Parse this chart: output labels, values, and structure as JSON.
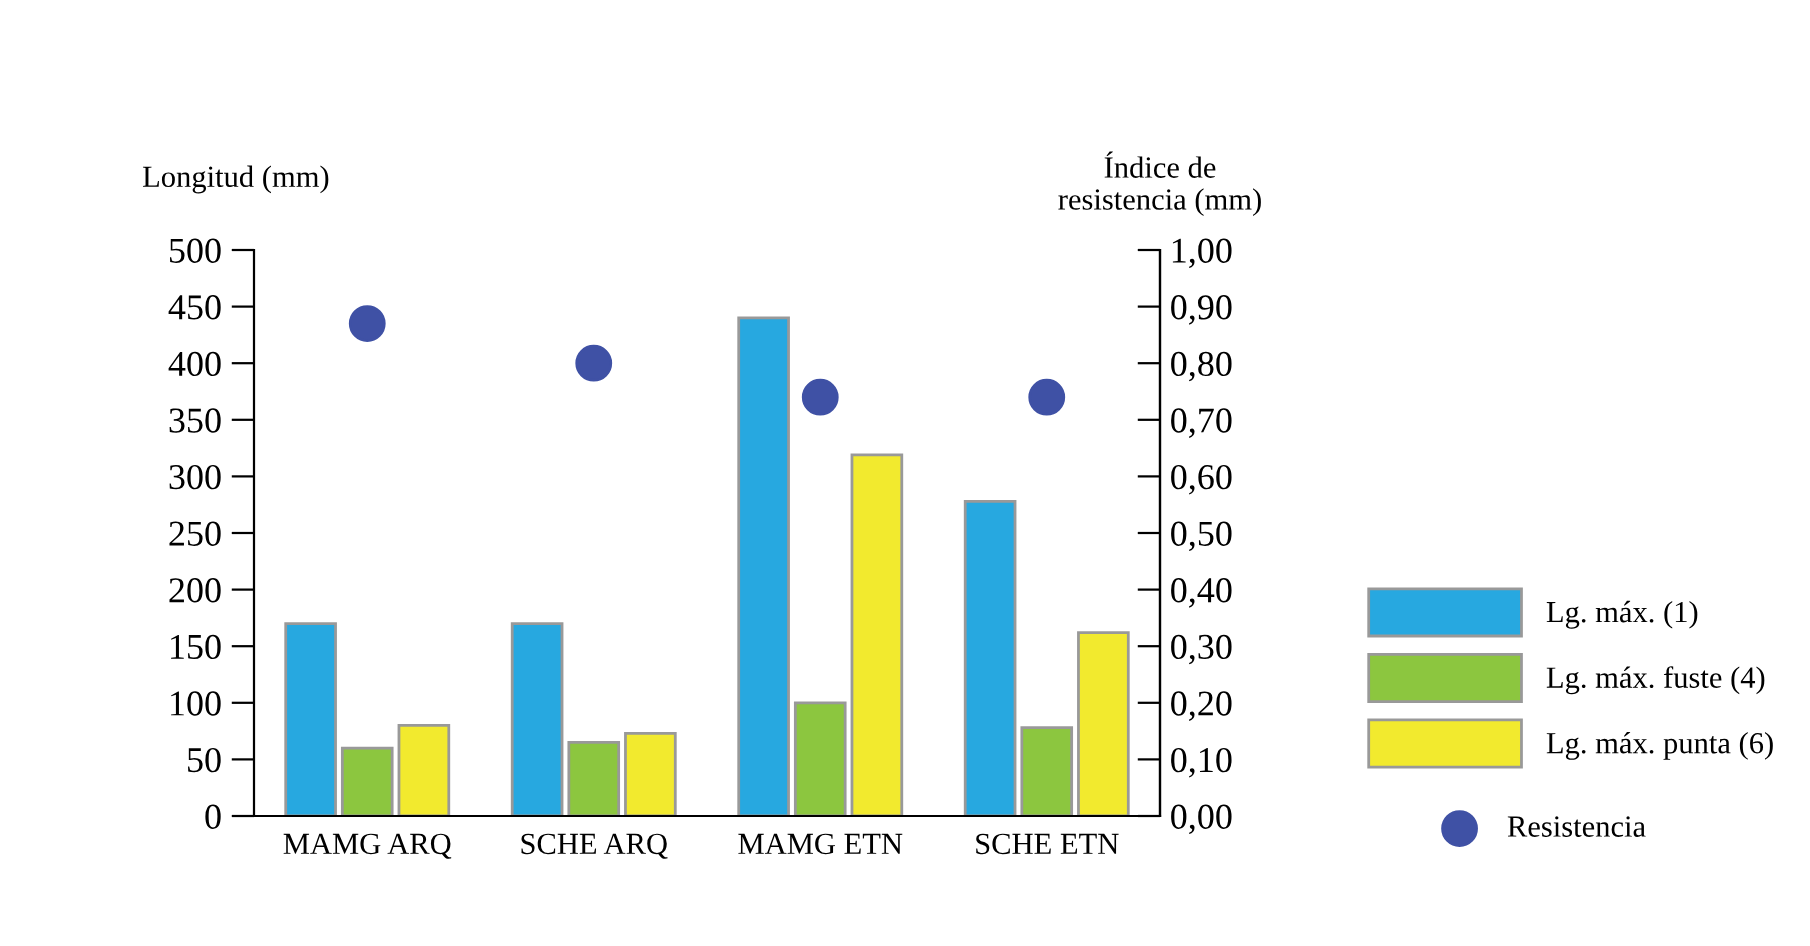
{
  "chart_data": {
    "type": "bar",
    "categories": [
      "MAMG ARQ",
      "SCHE ARQ",
      "MAMG ETN",
      "SCHE ETN"
    ],
    "ylabel": "Longitud (mm)",
    "y2label": "Índice de\nresistencia (mm)",
    "ylim": [
      0,
      500
    ],
    "yticks": [
      0,
      50,
      100,
      150,
      200,
      250,
      300,
      350,
      400,
      450,
      500
    ],
    "y2lim": [
      0,
      1
    ],
    "y2ticks": [
      {
        "value": 0,
        "label": "0,00"
      },
      {
        "value": 0.1,
        "label": "0,10"
      },
      {
        "value": 0.2,
        "label": "0,20"
      },
      {
        "value": 0.3,
        "label": "0,30"
      },
      {
        "value": 0.4,
        "label": "0,40"
      },
      {
        "value": 0.5,
        "label": "0,50"
      },
      {
        "value": 0.6,
        "label": "0,60"
      },
      {
        "value": 0.7,
        "label": "0,70"
      },
      {
        "value": 0.8,
        "label": "0,80"
      },
      {
        "value": 0.9,
        "label": "0,90"
      },
      {
        "value": 1,
        "label": "1,00"
      }
    ],
    "series": [
      {
        "name": "Lg. máx. (1)",
        "color": "#27a8e0",
        "values": [
          170,
          170,
          440,
          278
        ]
      },
      {
        "name": "Lg. máx. fuste (4)",
        "color": "#8cc63f",
        "values": [
          60,
          65,
          100,
          78
        ]
      },
      {
        "name": "Lg. máx. punta (6)",
        "color": "#f2ea2e",
        "values": [
          80,
          73,
          319,
          162
        ]
      },
      {
        "name": "Resistencia",
        "type": "scatter",
        "axis": "y2",
        "color": "#3f51a5",
        "marker": "circle",
        "x": [
          "MAMG ARQ",
          "SCHE ARQ",
          "MAMG ETN",
          "SCHE ETN"
        ],
        "values": [
          0.87,
          0.8,
          0.74,
          0.74
        ]
      }
    ],
    "legend": "right",
    "grid": false
  }
}
